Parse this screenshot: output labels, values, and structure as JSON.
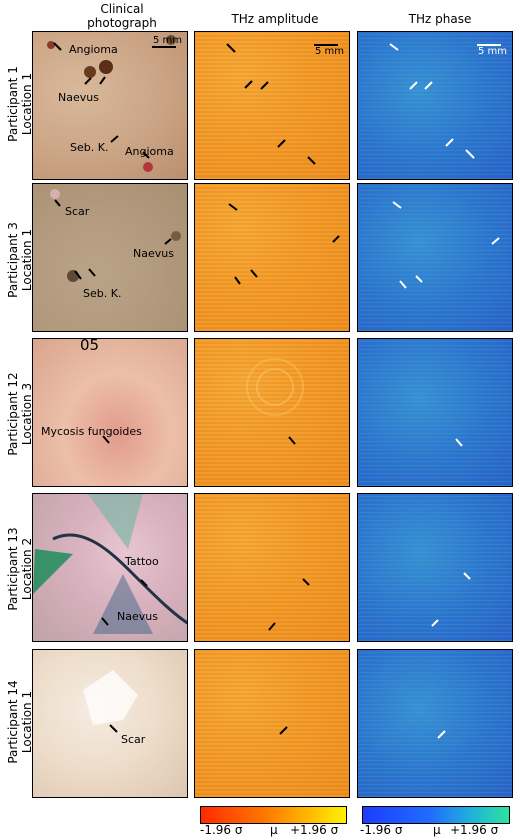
{
  "headers": {
    "col1": "Clinical\nphotograph",
    "col2": "THz amplitude",
    "col3": "THz phase"
  },
  "rows": [
    {
      "label": "Participant 1\nLocation 1",
      "scale_label": "5 mm",
      "clinical_labels": [
        "Angioma",
        "Naevus",
        "Seb. K.",
        "Angioma"
      ]
    },
    {
      "label": "Participant 3\nLocation 1",
      "clinical_labels": [
        "Scar",
        "Naevus",
        "Seb. K."
      ]
    },
    {
      "label": "Participant 12\nLocation 3",
      "photo_mark": "05",
      "clinical_labels": [
        "Mycosis fungoides"
      ]
    },
    {
      "label": "Participant 13\nLocation 2",
      "clinical_labels": [
        "Tattoo",
        "Naevus"
      ]
    },
    {
      "label": "Participant 14\nLocation 1",
      "clinical_labels": [
        "Scar"
      ]
    }
  ],
  "colorbars": {
    "amplitude": {
      "ticks": [
        "-1.96 σ",
        "μ",
        "+1.96 σ"
      ],
      "colors": [
        "#ff2a00",
        "#ff7a00",
        "#ffd000",
        "#fff200"
      ]
    },
    "phase": {
      "ticks": [
        "-1.96 σ",
        "μ",
        "+1.96 σ"
      ],
      "colors": [
        "#1f3cff",
        "#1f6bff",
        "#22b3d7",
        "#2ce39c"
      ]
    }
  }
}
